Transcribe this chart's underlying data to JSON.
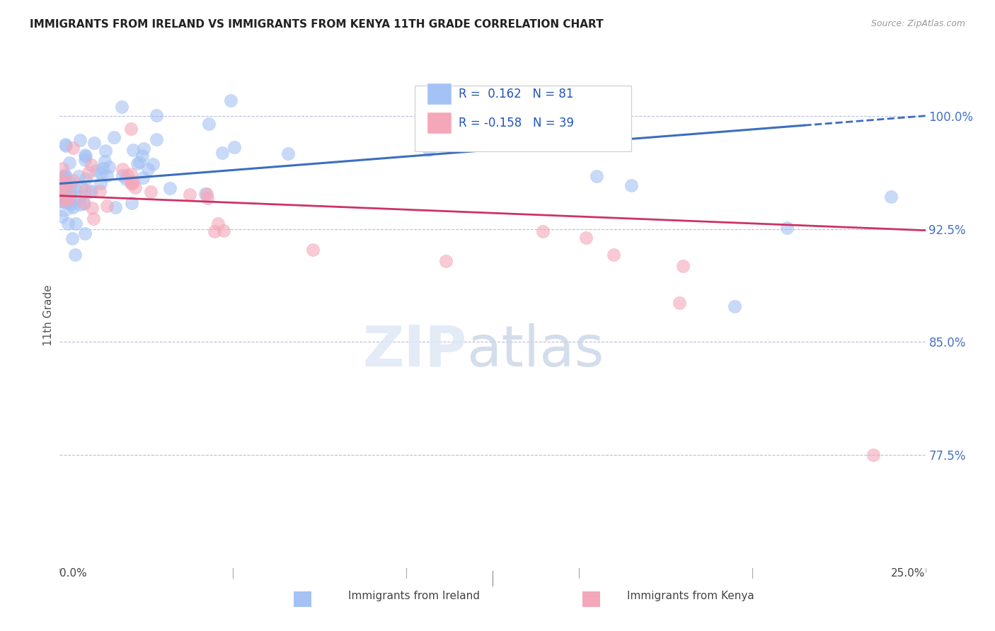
{
  "title": "IMMIGRANTS FROM IRELAND VS IMMIGRANTS FROM KENYA 11TH GRADE CORRELATION CHART",
  "source": "Source: ZipAtlas.com",
  "ylabel": "11th Grade",
  "y_ticks": [
    0.775,
    0.85,
    0.925,
    1.0
  ],
  "y_tick_labels": [
    "77.5%",
    "85.0%",
    "92.5%",
    "100.0%"
  ],
  "x_lim": [
    0.0,
    0.25
  ],
  "y_lim": [
    0.7,
    1.035
  ],
  "legend_ireland_R": "0.162",
  "legend_ireland_N": "81",
  "legend_kenya_R": "-0.158",
  "legend_kenya_N": "39",
  "ireland_color": "#a4c2f4",
  "kenya_color": "#f4a7b9",
  "ireland_line_color": "#3c6ebf",
  "kenya_line_color": "#cc3366",
  "background_color": "#ffffff",
  "ireland_line_x0": 0.0,
  "ireland_line_y0": 0.955,
  "ireland_line_x1": 0.25,
  "ireland_line_y1": 1.0,
  "kenya_line_x0": 0.0,
  "kenya_line_y0": 0.947,
  "kenya_line_x1": 0.25,
  "kenya_line_y1": 0.924
}
